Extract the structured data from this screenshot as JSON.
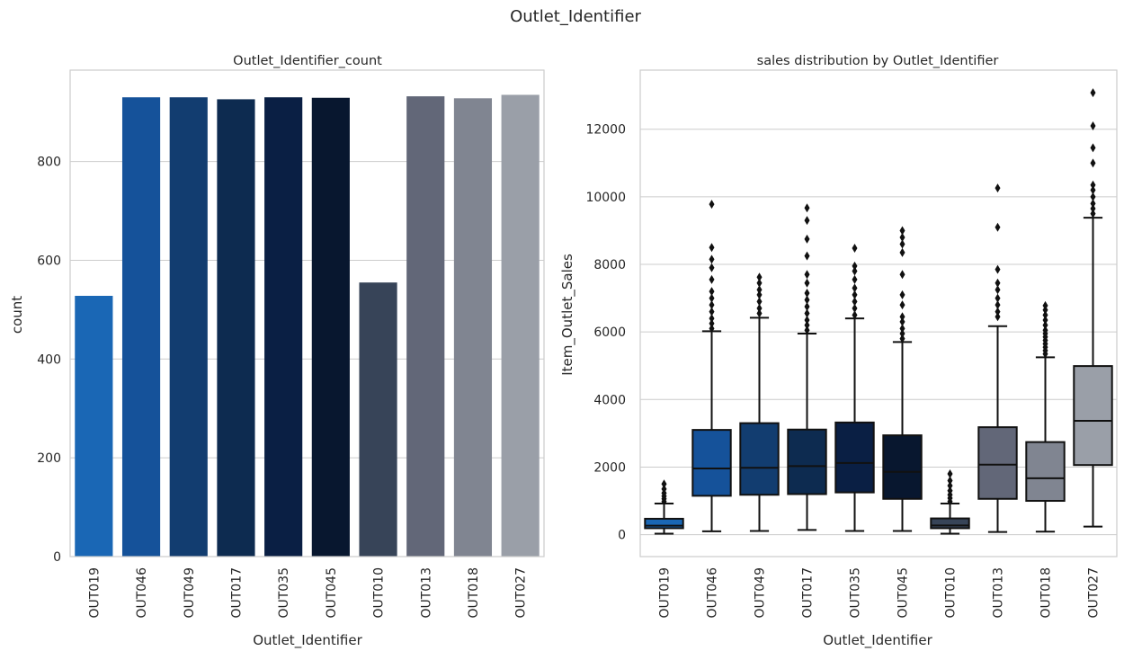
{
  "figure": {
    "suptitle": "Outlet_Identifier"
  },
  "chart_data": [
    {
      "type": "bar",
      "title": "Outlet_Identifier_count",
      "xlabel": "Outlet_Identifier",
      "ylabel": "count",
      "categories": [
        "OUT019",
        "OUT046",
        "OUT049",
        "OUT017",
        "OUT035",
        "OUT045",
        "OUT010",
        "OUT013",
        "OUT018",
        "OUT027"
      ],
      "values": [
        528,
        930,
        930,
        926,
        930,
        929,
        555,
        932,
        928,
        935
      ],
      "colors": [
        "#1a67b5",
        "#15529a",
        "#123d70",
        "#0d2b50",
        "#0a1f44",
        "#08172f",
        "#374458",
        "#626778",
        "#808591",
        "#9a9fa8"
      ],
      "ylim": [
        0,
        985
      ],
      "yticks": [
        0,
        200,
        400,
        600,
        800
      ],
      "grid": true
    },
    {
      "type": "box",
      "title": "sales distribution by Outlet_Identifier",
      "xlabel": "Outlet_Identifier",
      "ylabel": "Item_Outlet_Sales",
      "categories": [
        "OUT019",
        "OUT046",
        "OUT049",
        "OUT017",
        "OUT035",
        "OUT045",
        "OUT010",
        "OUT013",
        "OUT018",
        "OUT027"
      ],
      "colors": [
        "#1a67b5",
        "#15529a",
        "#123d70",
        "#0d2b50",
        "#0a1f44",
        "#08172f",
        "#374458",
        "#626778",
        "#808591",
        "#9a9fa8"
      ],
      "ylim": [
        -650,
        13750
      ],
      "yticks": [
        0,
        2000,
        4000,
        6000,
        8000,
        10000,
        12000
      ],
      "grid": true,
      "boxes": [
        {
          "whislo": 30,
          "q1": 190,
          "med": 265,
          "q3": 470,
          "whishi": 920,
          "fliers": [
            980,
            1060,
            1140,
            1230,
            1350,
            1500
          ]
        },
        {
          "whislo": 100,
          "q1": 1150,
          "med": 1960,
          "q3": 3100,
          "whishi": 6020,
          "fliers": [
            6100,
            6250,
            6400,
            6600,
            6800,
            7000,
            7200,
            7550,
            7900,
            8150,
            8500,
            9780
          ]
        },
        {
          "whislo": 110,
          "q1": 1180,
          "med": 1980,
          "q3": 3300,
          "whishi": 6420,
          "fliers": [
            6550,
            6700,
            6900,
            7100,
            7250,
            7450,
            7620
          ]
        },
        {
          "whislo": 140,
          "q1": 1200,
          "med": 2030,
          "q3": 3110,
          "whishi": 5950,
          "fliers": [
            6050,
            6200,
            6350,
            6550,
            6750,
            6950,
            7150,
            7450,
            7700,
            8250,
            8750,
            9300,
            9670
          ]
        },
        {
          "whislo": 110,
          "q1": 1250,
          "med": 2120,
          "q3": 3320,
          "whishi": 6400,
          "fliers": [
            6500,
            6700,
            6900,
            7100,
            7300,
            7550,
            7800,
            7950,
            8480
          ]
        },
        {
          "whislo": 110,
          "q1": 1060,
          "med": 1860,
          "q3": 2940,
          "whishi": 5700,
          "fliers": [
            5800,
            5950,
            6100,
            6300,
            6450,
            6800,
            7100,
            7700,
            8350,
            8600,
            8800,
            9000
          ]
        },
        {
          "whislo": 30,
          "q1": 190,
          "med": 270,
          "q3": 480,
          "whishi": 920,
          "fliers": [
            980,
            1080,
            1180,
            1300,
            1450,
            1600,
            1800
          ]
        },
        {
          "whislo": 80,
          "q1": 1060,
          "med": 2070,
          "q3": 3180,
          "whishi": 6170,
          "fliers": [
            6450,
            6600,
            6800,
            7000,
            7250,
            7450,
            7850,
            9100,
            10260
          ]
        },
        {
          "whislo": 90,
          "q1": 1000,
          "med": 1670,
          "q3": 2740,
          "whishi": 5250,
          "fliers": [
            5350,
            5450,
            5550,
            5650,
            5750,
            5850,
            5950,
            6050,
            6200,
            6350,
            6500,
            6650,
            6780
          ]
        },
        {
          "whislo": 240,
          "q1": 2060,
          "med": 3370,
          "q3": 4990,
          "whishi": 9380,
          "fliers": [
            9500,
            9650,
            9800,
            10000,
            10200,
            10350,
            11000,
            11450,
            12100,
            13080
          ]
        }
      ]
    }
  ]
}
